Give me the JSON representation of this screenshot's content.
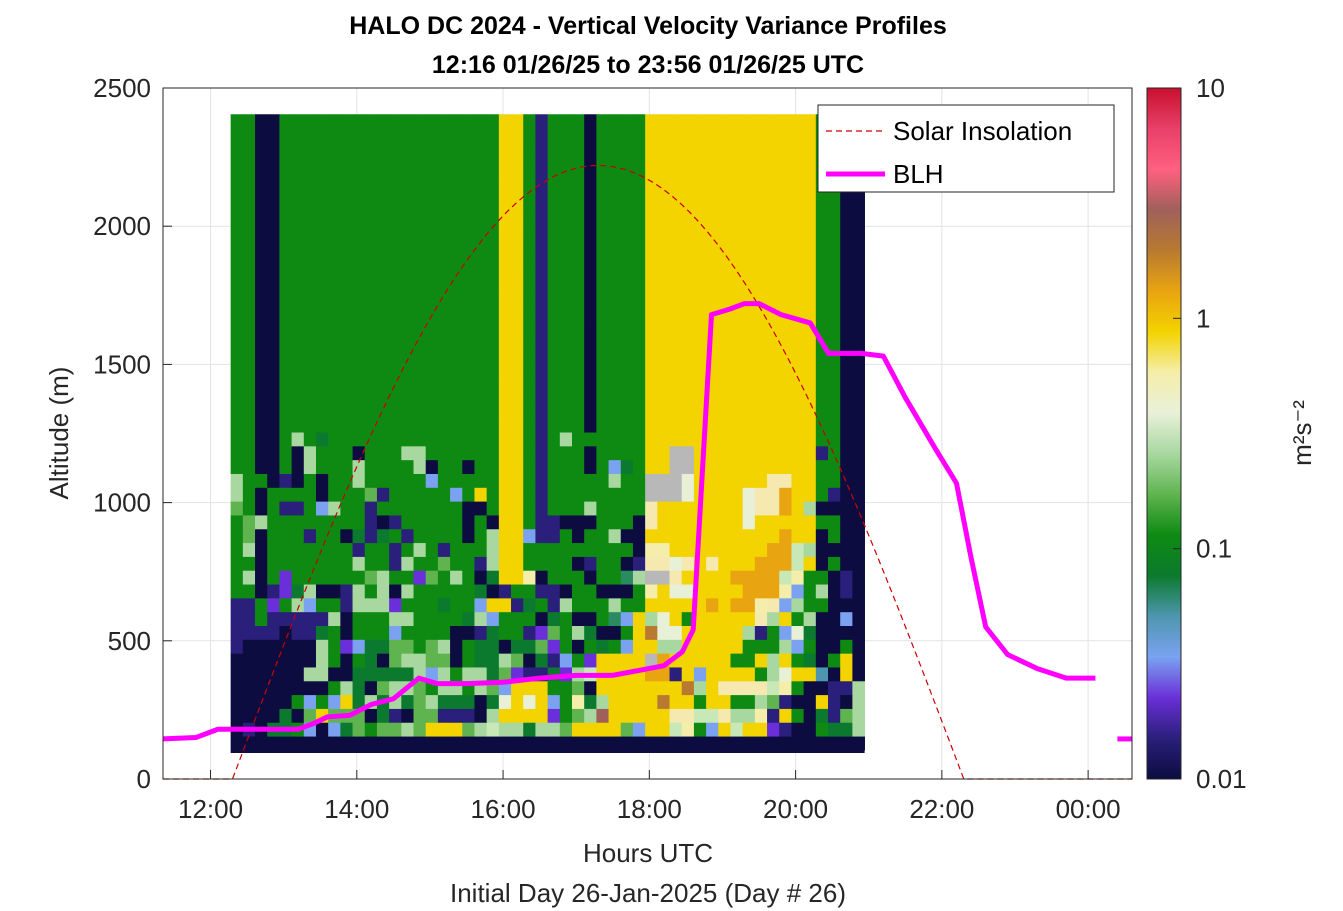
{
  "chart_data": {
    "type": "heatmap",
    "title": "HALO DC 2024 - Vertical Velocity Variance Profiles",
    "subtitle": "12:16 01/26/25 to 23:56 01/26/25  UTC",
    "xlabel": "Hours UTC",
    "xlabel2": "Initial Day 26-Jan-2025 (Day # 26)",
    "ylabel": "Altitude (m)",
    "xlim": [
      11.35,
      24.6
    ],
    "ylim": [
      0,
      2500
    ],
    "grid": true,
    "x_ticks": [
      {
        "value": 12,
        "label": "12:00"
      },
      {
        "value": 14,
        "label": "14:00"
      },
      {
        "value": 16,
        "label": "16:00"
      },
      {
        "value": 18,
        "label": "18:00"
      },
      {
        "value": 20,
        "label": "20:00"
      },
      {
        "value": 22,
        "label": "22:00"
      },
      {
        "value": 24,
        "label": "00:00"
      }
    ],
    "y_ticks": [
      {
        "value": 0,
        "label": "0"
      },
      {
        "value": 500,
        "label": "500"
      },
      {
        "value": 1000,
        "label": "1000"
      },
      {
        "value": 1500,
        "label": "1500"
      },
      {
        "value": 2000,
        "label": "2000"
      },
      {
        "value": 2500,
        "label": "2500"
      }
    ],
    "colorbar": {
      "label": "m²s⁻²",
      "scale": "log",
      "range": [
        0.01,
        10
      ],
      "ticks": [
        {
          "value": 0.01,
          "label": "0.01"
        },
        {
          "value": 0.1,
          "label": "0.1"
        },
        {
          "value": 1,
          "label": "1"
        },
        {
          "value": 10,
          "label": "10"
        }
      ],
      "colormap": [
        "#0c0c40",
        "#2a1f7a",
        "#6a2fd8",
        "#7aa2f0",
        "#4e96b0",
        "#0c7a2e",
        "#0e8a12",
        "#5fb44f",
        "#a8d8a0",
        "#e8f0d8",
        "#f5eeaa",
        "#f3d300",
        "#e9a411",
        "#b87a30",
        "#a0605a",
        "#ff6080",
        "#e8406a",
        "#c8102e"
      ]
    },
    "legend": {
      "placement": "top-right",
      "entries": [
        {
          "name": "Solar Insolation",
          "color": "#cc0000",
          "style": "dashed"
        },
        {
          "name": "BLH",
          "color": "#ff00ff",
          "style": "solid"
        }
      ]
    },
    "heatmap": {
      "t0": 12.275,
      "dt": 0.1667,
      "z0": 105,
      "dz": 50,
      "ncols": 52,
      "nrows": 46,
      "note_values": "log10 of variance (m^2 s^-2)",
      "rows_log10": [
        "nnnnnnnnnnnnnnnnnnnnnnnnnnnnnnnnnnnnnnnnnnnnnnnnnnnn",
        "nbnmmvcncmgvggfgaaagfoffmffgaaaagcaaoyvcaoLLpbnnvmmf",
        "nnnnmngagggnmbnggbbbnfLaaapvgfDaaaaaHHooHffybavnmbgf",
        "nnnnnvcvcamfmfmgfmmmnmeaeacvymfaaaaFLLvaavvfgbnnabnf",
        "nnnnnnnnvfmngffgvffvfgcaaavvgnLaaaaaaFfLHHHHoyvnnbbf",
        "nnnnnnffnnmmmmmfcfvffmgpbbmpfoaaaaOObacaaaavfeaaknLn",
        "nnnnnnnfvnvmngffggnvmmfgnmbcvpLaaaCOaaLaavvLfavmnvLn",
        "bnnnnnnfvpcmmggvgfnvmmnmmgpvnvmvcaLffaaLaavvvfcvnnvn",
        "bbbbnbbmvnvvvcvvvvnnbmvvbpgvfmnnvaFeeLaaaafbvcemnnnn",
        "bbvbbbbbfnvvvffvvvvmfcvvvnmvnnvhcafeLvaaLaaHfavfnncn",
        "bbvpvfcvvbfffpvvvmvvcaabmvbfvvvfvvaaLaaOLOOyHcfvvnnn",
        "vvnbpmfnnbfvfnfvvvvvmnbvvbbnvvnnnvyaeeaaaaOOOycvfnbn",
        "vfnvpvvvvvvgfvvpgvfvnmaaynvvvnvvhfIIHaaaaOOOOoyvvnbn",
        "vvnvvvvvvvfvvbfvvgvvbfaavvvvnbvvnbHHeHaHaaaOOOoanvnn",
        "vfnvvvvvvvbvvbvfvbvvvfaavvvvvvvvvnyyaaaaaaLaOOofnnnn",
        "vgnvvvbvvnmbmvbvvvvnvfaacbbvnvvfnnaaaaaaLaaaaOaanvnn",
        "vgfvvvvvvvvbnbvvvvvnvnaavbbnnnvvvnHaaaaaaaeaaaaavvnn",
        "gvnvbbvcfvvbvvvvvvvnnvaavbvvvfvvvvHaaaaaaLeHHOafnnnn",
        "fvnvvvvnvvvgbvvvvvcvavaavbvvvvvvvvIIIeaaaaeHHOaavbnn",
        "fvvnbnvnvvfvvvvvcvvvvvaavbvvvvvfvvIIIeaaaaaaHHaavvnn",
        "vvnnvnfvvvfvvvvfnvvnvvaavbvvvnvcmvaaIIaaaaaaaaaavvnn",
        "vvnnvnfvvvnvvvffvvvvvvaavbvvvnvvvvaaIIaaaaaaaaaabvnn",
        "vvnnvfvmvvvvvvvvvvvvvvaavbvfvvvvvvaaaaaLLLaaaaaavvnn",
        "vvnnvvvvvvvvvvvvvvvvvvaavbvvvnvvvvaaaaaaaaaaaaaavvnn",
        "vvnnvvvvvvvvvvvvvvvvvvaavbvvvnvvvvaaaaaaaaaaaaaavvnn",
        "vvnnvvvvvvvvvvvvvvvvvvaavbvvvnvvvvaaaaaaaaaaaaaavvnn",
        "vvnnvvvvvvvvvvvvvvvvvvaavbvvvnvvvvaaaaaaaaaaaaaavvnn",
        "vvnnvvvvvvvvvvvvvvvvvvaavbvvvnvvvvaaaaaaaaaaaaaavvnn",
        "vvnnvvvvvvvvvvvvvvvvvvaavbvvvnvvvvaaaaaaaaaaaaaavvnn",
        "vvnnvvvvvvvvvvvvvvvvvvaavbvvvnvvvvaaaaaaaaaaaaaavvnn",
        "vvnnvvvvvvvvvvvvvvvvvvaavbvvvnvvvvaaaaaaaaaaaaaavvnn",
        "vvnnvvvvvvvvvvvvvvvvvvaavbvvvnvvvvaaaaaaaaaaaaaavvnn",
        "vvnnvvvvvvvvvvvvvvvvvvaavbvvvnvvvvaaaaaaaaaaaaaavvnn",
        "vvnnvvvvvvvvvvvvvvvvvvaavbvvvnvvvvaaaaaaaaaaaaaavvnn",
        "vvnnvvvvvvvvvvvvvvvvvvaavbvvvnvvvvaaaaaaaaaaaaaavvnn",
        "vvnnvvvvvvvvvvvvvvvvvvaavbvvvnvvvvaaaaaaaaaaaaaavvnn",
        "vvnnvvvvvvvvvvvvvvvvvvaavbvvvnvvvvaaaaaaaaaaaaaavvnn",
        "vvnnvvvvvvvvvvvvvvvvvvaavbvvvnvvvvaaaaaaaaaaaaaavvnn",
        "vvnnvvvvvvvvvvvvvvvvvvaavbvvvnvvvvaaaaaaaaaaaaaavvnn",
        "vvnnvvvvvvvvvvvvvvvvvvaavbvvvnvvvvaaaaaaaaaaaaaavvnn",
        "vvnnvvvvvvvvvvvvvvvvvvaavbvvvnvvvvaaaaaaaaaaaaaavvnn",
        "vvnnvvvvvvvvvvvvvvvvvvaavbvvvnvvvvaaaaaaaaaaaaaavvnn",
        "vvnnvvvvvvvvvvvvvvvvvvaavbvvvnvvvvaaaaaaaaaaaaaavvnn",
        "vvnnvvvvvvvvvvvvvvvvvvaavbvvvnvvvvaaaaaaaaaaaaaavvnn",
        "vvnnvvvvvvvvvvvvvvvvvvaavbvvvnvvvvaaaaaaaaaaaaaavvnn",
        "vvnnvvvvvvvvvvvvvvvvvvaavbvvvnvvvvaaaaaaaaaaaaaavvnn"
      ]
    },
    "blh": {
      "x": [
        11.35,
        11.8,
        12.1,
        12.5,
        13.2,
        13.4,
        13.6,
        13.9,
        14.2,
        14.5,
        14.85,
        15.1,
        15.5,
        16.0,
        16.5,
        17.0,
        17.5,
        18.0,
        18.2,
        18.45,
        18.6,
        18.85,
        19.1,
        19.3,
        19.5,
        19.8,
        20.2,
        20.45,
        20.9,
        21.2,
        21.5,
        21.9,
        22.2,
        22.4,
        22.6,
        22.9,
        23.3,
        23.7,
        24.1
      ],
      "y": [
        145,
        150,
        180,
        180,
        180,
        200,
        225,
        230,
        270,
        290,
        365,
        345,
        345,
        350,
        365,
        375,
        375,
        400,
        410,
        460,
        540,
        1680,
        1700,
        1720,
        1720,
        1680,
        1650,
        1540,
        1540,
        1530,
        1380,
        1200,
        1070,
        800,
        550,
        450,
        400,
        365,
        365
      ],
      "right_segment_x": [
        24.4,
        24.6
      ],
      "right_segment_y": [
        145,
        145
      ]
    },
    "solar_insolation": {
      "x_start": 12.3,
      "x_end": 22.3,
      "peak_x": 17.3,
      "peak_y": 2220,
      "baseline_y": 0
    }
  }
}
